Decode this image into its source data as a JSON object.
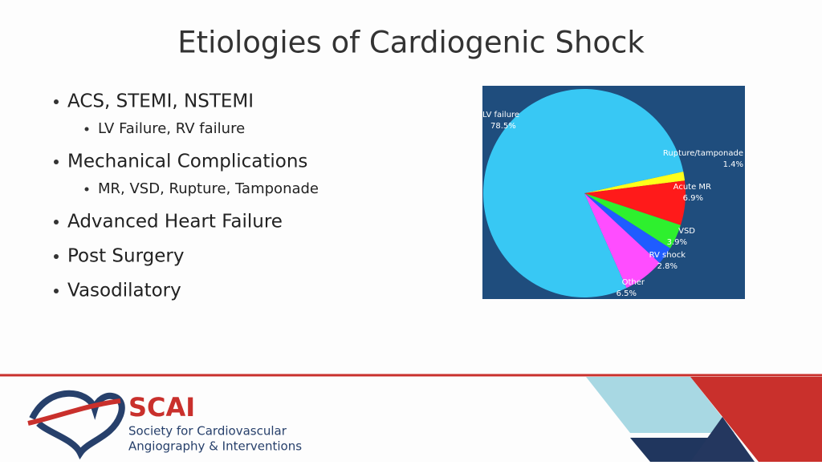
{
  "title": "Etiologies of Cardiogenic Shock",
  "bullets": [
    {
      "text": "ACS, STEMI, NSTEMI",
      "sub": [
        "LV Failure, RV failure"
      ]
    },
    {
      "text": "Mechanical Complications",
      "sub": [
        "MR, VSD, Rupture, Tamponade"
      ]
    },
    {
      "text": "Advanced Heart Failure",
      "sub": []
    },
    {
      "text": "Post Surgery",
      "sub": []
    },
    {
      "text": "Vasodilatory",
      "sub": []
    }
  ],
  "chart_data": {
    "type": "pie",
    "categories": [
      "LV failure",
      "Rupture/tamponade",
      "Acute MR",
      "VSD",
      "RV shock",
      "Other"
    ],
    "values": [
      78.5,
      1.4,
      6.9,
      3.9,
      2.8,
      6.5
    ],
    "value_labels": [
      "78.5%",
      "1.4%",
      "6.9%",
      "3.9%",
      "2.8%",
      "6.5%"
    ],
    "colors": [
      "#38c8f4",
      "#ffff1a",
      "#ff1a1a",
      "#2ef02e",
      "#1f5cff",
      "#ff4dff"
    ]
  },
  "logo": {
    "name": "SCAI",
    "line1": "Society for Cardiovascular",
    "line2": "Angiography & Interventions"
  }
}
